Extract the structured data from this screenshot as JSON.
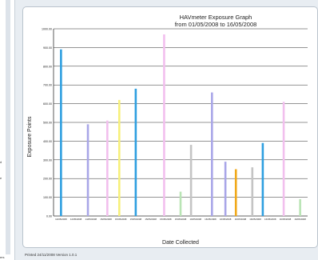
{
  "sidebar": {
    "fragment_1": "d",
    "fragment_2": "e",
    "fragment_3": "ers"
  },
  "footer": {
    "printed_text": "Printed 24/11/2008 Version 1.0.1"
  },
  "chart_data": {
    "type": "bar",
    "title": "HAVmeter Exposure Graph",
    "subtitle": "from 01/05/2008 to 16/05/2008",
    "xlabel": "Date Collected",
    "ylabel": "Exposure Points",
    "ylim": [
      0,
      1000
    ],
    "yticks": [
      "0.00",
      "100.00",
      "200.00",
      "300.00",
      "400.00",
      "500.00",
      "600.00",
      "700.00",
      "800.00",
      "900.00",
      "1000.00"
    ],
    "grid": true,
    "categories": [
      "14/05/2008",
      "14/05/2008",
      "14/05/2008",
      "15/05/2008",
      "15/05/2008",
      "15/05/2008",
      "15/05/2008",
      "15/05/2008",
      "15/05/2008",
      "16/05/2008",
      "16/05/2008",
      "16/05/2008",
      "16/05/2008",
      "16/05/2008",
      "16/05/2008",
      "16/05/2008",
      "16/05/2008"
    ],
    "bars": [
      {
        "slot": 0.5,
        "value": 890,
        "color": "#2e9fe0"
      },
      {
        "slot": 2.3,
        "value": 490,
        "color": "#a9a6e8"
      },
      {
        "slot": 3.6,
        "value": 510,
        "color": "#f2bfee"
      },
      {
        "slot": 4.4,
        "value": 620,
        "color": "#f6f07a"
      },
      {
        "slot": 5.5,
        "value": 680,
        "color": "#2e9fe0"
      },
      {
        "slot": 7.4,
        "value": 970,
        "color": "#f2bfee"
      },
      {
        "slot": 8.5,
        "value": 130,
        "color": "#b9e4b5"
      },
      {
        "slot": 9.2,
        "value": 380,
        "color": "#c4c4c4"
      },
      {
        "slot": 10.6,
        "value": 660,
        "color": "#a9a6e8"
      },
      {
        "slot": 11.5,
        "value": 290,
        "color": "#a9a6e8"
      },
      {
        "slot": 12.2,
        "value": 250,
        "color": "#f0a818"
      },
      {
        "slot": 13.3,
        "value": 260,
        "color": "#c4c4c4"
      },
      {
        "slot": 14.0,
        "value": 390,
        "color": "#2e9fe0"
      },
      {
        "slot": 15.4,
        "value": 610,
        "color": "#f2bfee"
      },
      {
        "slot": 16.5,
        "value": 90,
        "color": "#b9e4b5"
      }
    ]
  }
}
